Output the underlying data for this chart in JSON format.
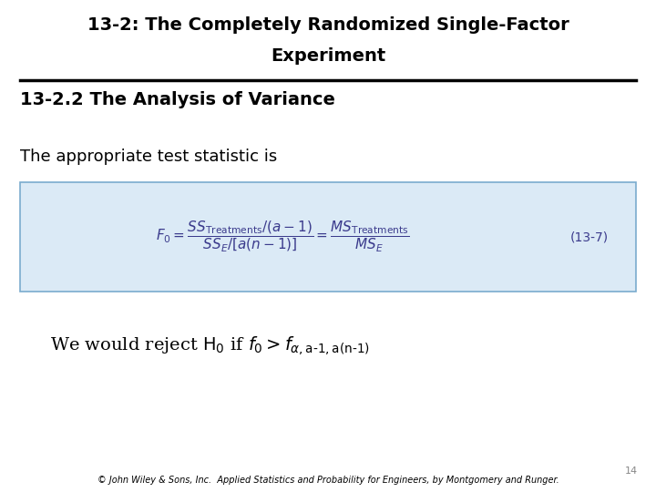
{
  "title_line1": "13-2: The Completely Randomized Single-Factor",
  "title_line2": "Experiment",
  "section_title": "13-2.2 The Analysis of Variance",
  "intro_text": "The appropriate test statistic is",
  "equation_label": "(13-7)",
  "page_number": "14",
  "footer": "© John Wiley & Sons, Inc.  Applied Statistics and Probability for Engineers, by Montgomery and Runger.",
  "box_bg_color": "#dbeaf6",
  "box_edge_color": "#7aacce",
  "bg_color": "#ffffff",
  "title_fontsize": 14,
  "section_fontsize": 14,
  "body_fontsize": 13,
  "eq_fontsize": 11,
  "footer_fontsize": 7,
  "page_num_fontsize": 8
}
